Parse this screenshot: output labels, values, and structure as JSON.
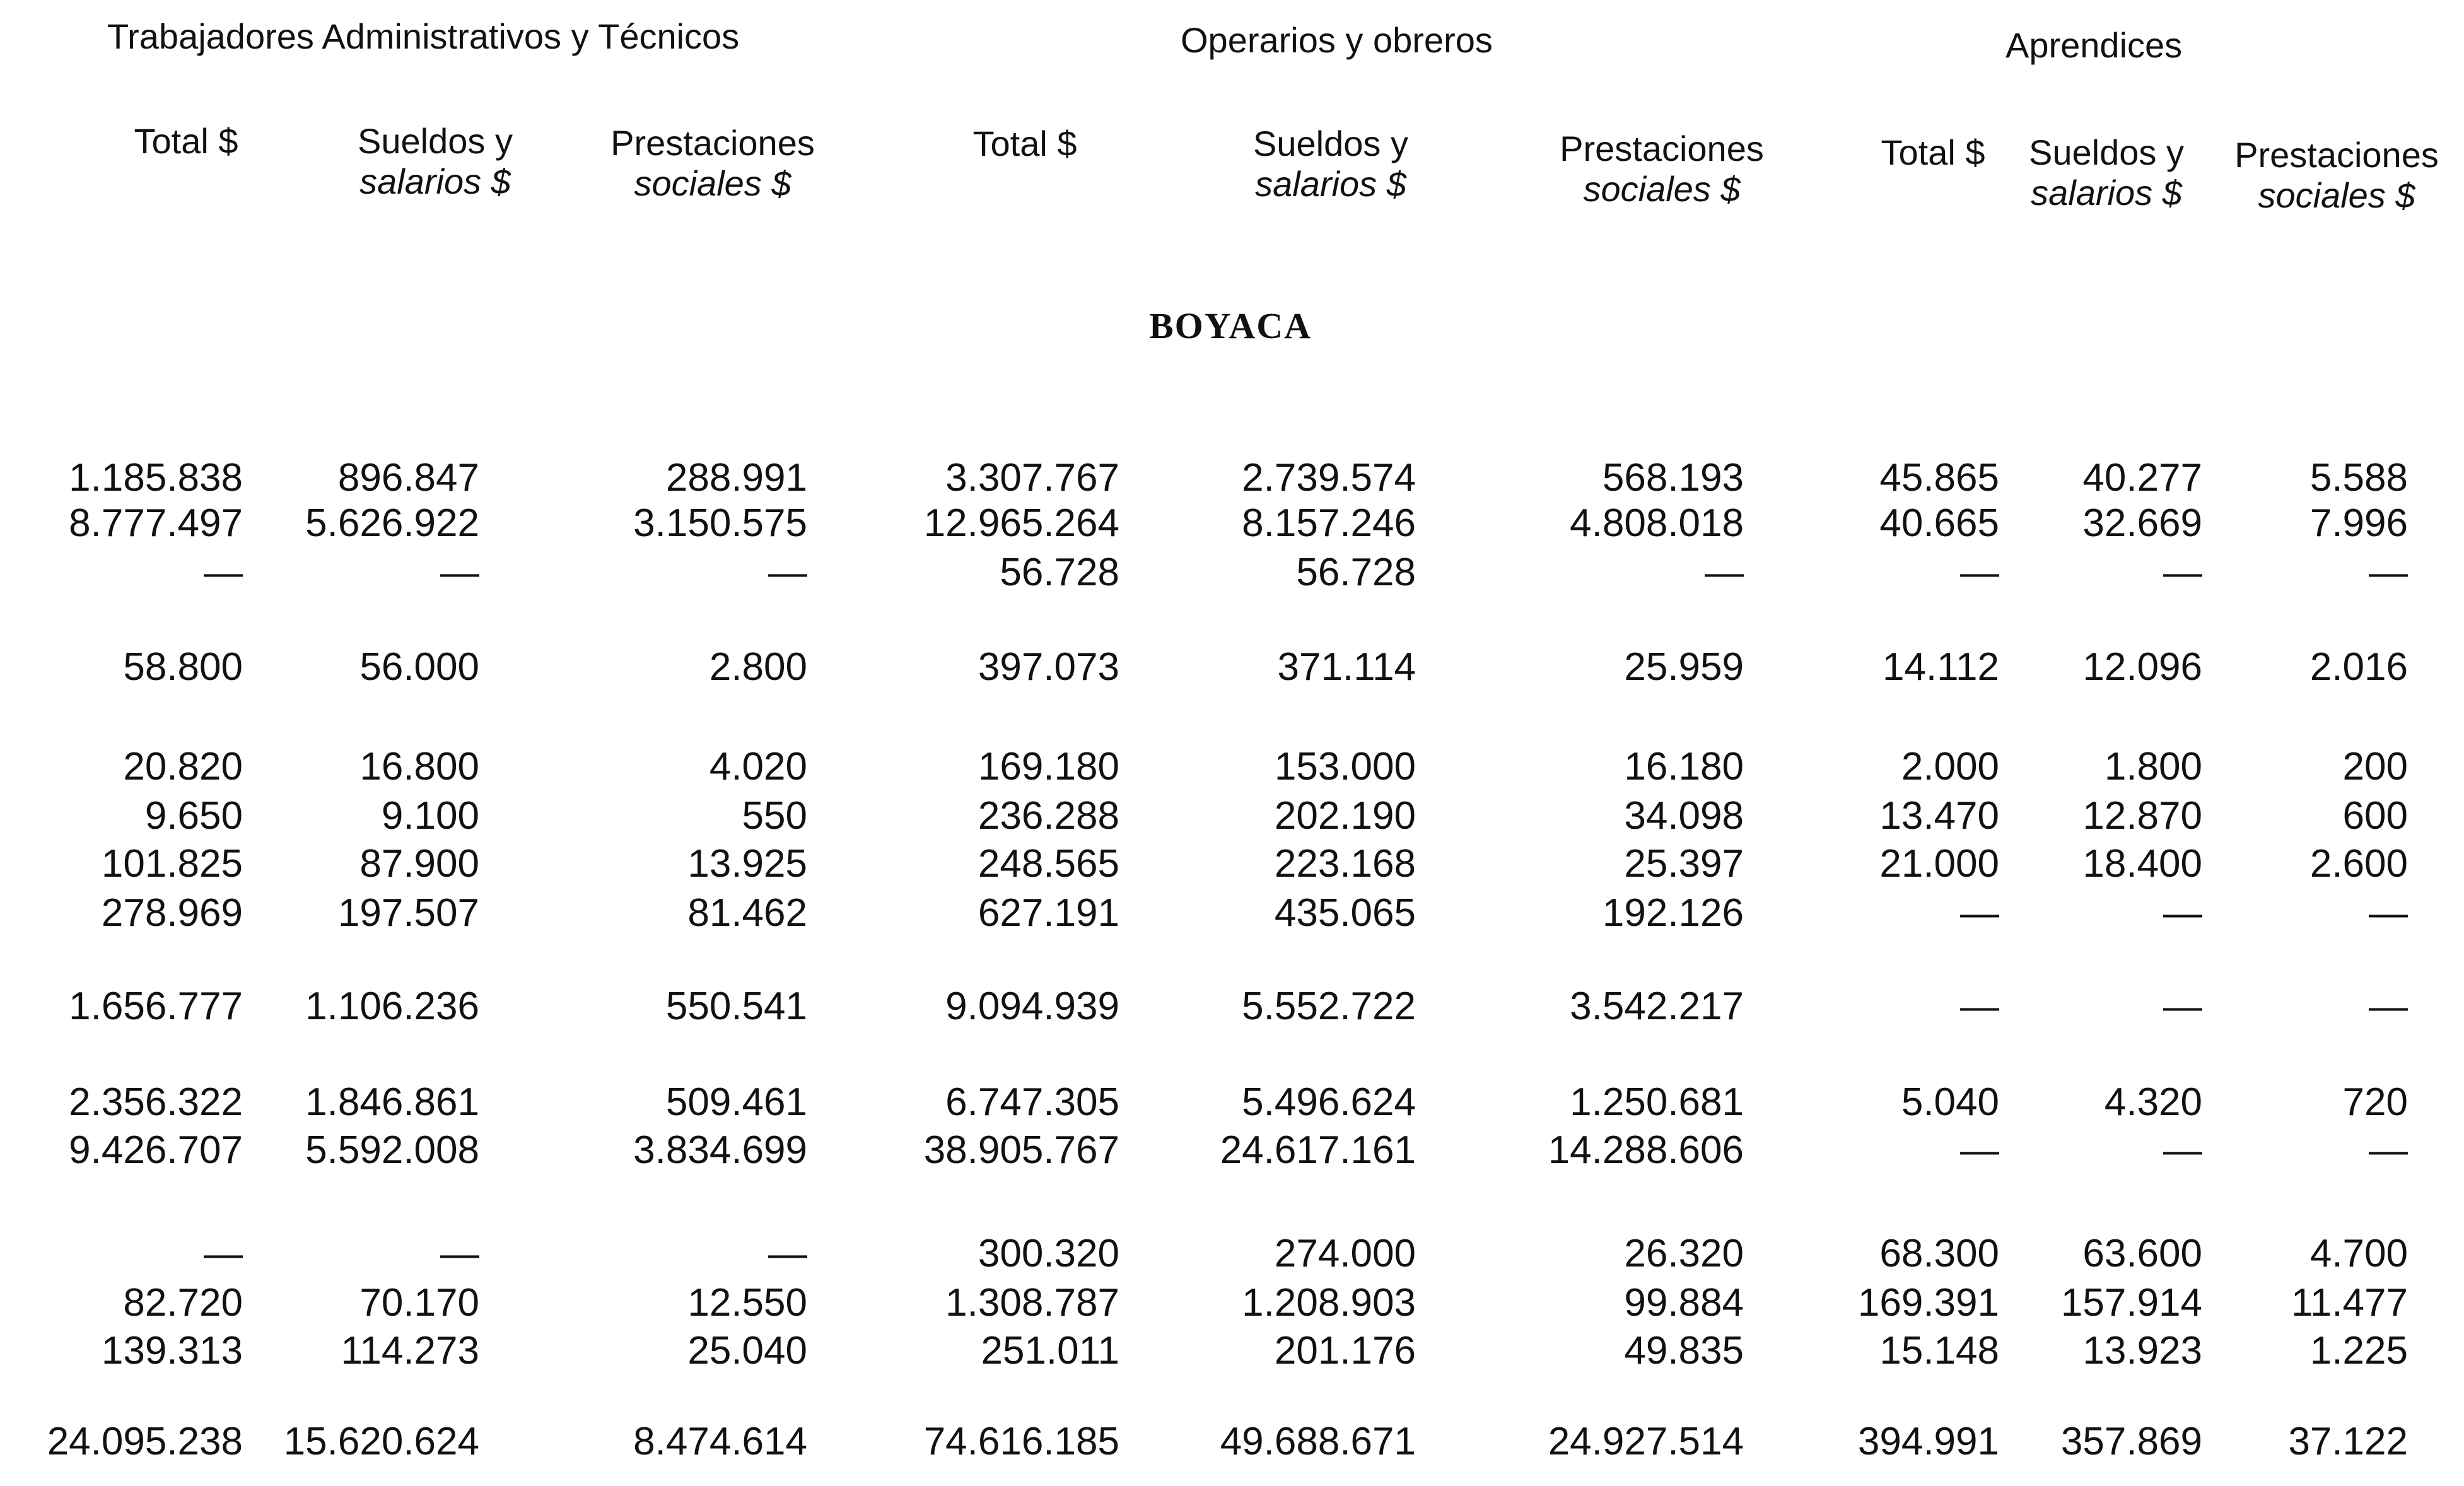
{
  "groups": {
    "admin": "Trabajadores Administrativos y Técnicos",
    "operarios": "Operarios y obreros",
    "aprendices": "Aprendices"
  },
  "columns": {
    "total": "Total $",
    "sueldos_1": "Sueldos y",
    "sueldos_2": "salarios $",
    "prest_1": "Prestaciones",
    "prest_2": "sociales $"
  },
  "section": "BOYACA",
  "rows": [
    [
      "1.185.838",
      "896.847",
      "288.991",
      "3.307.767",
      "2.739.574",
      "568.193",
      "45.865",
      "40.277",
      "5.588"
    ],
    [
      "8.777.497",
      "5.626.922",
      "3.150.575",
      "12.965.264",
      "8.157.246",
      "4.808.018",
      "40.665",
      "32.669",
      "7.996"
    ],
    [
      "—",
      "—",
      "—",
      "56.728",
      "56.728",
      "—",
      "—",
      "—",
      "—"
    ],
    [
      "58.800",
      "56.000",
      "2.800",
      "397.073",
      "371.114",
      "25.959",
      "14.112",
      "12.096",
      "2.016"
    ],
    [
      "20.820",
      "16.800",
      "4.020",
      "169.180",
      "153.000",
      "16.180",
      "2.000",
      "1.800",
      "200"
    ],
    [
      "9.650",
      "9.100",
      "550",
      "236.288",
      "202.190",
      "34.098",
      "13.470",
      "12.870",
      "600"
    ],
    [
      "101.825",
      "87.900",
      "13.925",
      "248.565",
      "223.168",
      "25.397",
      "21.000",
      "18.400",
      "2.600"
    ],
    [
      "278.969",
      "197.507",
      "81.462",
      "627.191",
      "435.065",
      "192.126",
      "—",
      "—",
      "—"
    ],
    [
      "1.656.777",
      "1.106.236",
      "550.541",
      "9.094.939",
      "5.552.722",
      "3.542.217",
      "—",
      "—",
      "—"
    ],
    [
      "2.356.322",
      "1.846.861",
      "509.461",
      "6.747.305",
      "5.496.624",
      "1.250.681",
      "5.040",
      "4.320",
      "720"
    ],
    [
      "9.426.707",
      "5.592.008",
      "3.834.699",
      "38.905.767",
      "24.617.161",
      "14.288.606",
      "—",
      "—",
      "—"
    ],
    [
      "—",
      "—",
      "—",
      "300.320",
      "274.000",
      "26.320",
      "68.300",
      "63.600",
      "4.700"
    ],
    [
      "82.720",
      "70.170",
      "12.550",
      "1.308.787",
      "1.208.903",
      "99.884",
      "169.391",
      "157.914",
      "11.477"
    ],
    [
      "139.313",
      "114.273",
      "25.040",
      "251.011",
      "201.176",
      "49.835",
      "15.148",
      "13.923",
      "1.225"
    ],
    [
      "24.095.238",
      "15.620.624",
      "8.474.614",
      "74.616.185",
      "49.688.671",
      "24.927.514",
      "394.991",
      "357.869",
      "37.122"
    ]
  ]
}
